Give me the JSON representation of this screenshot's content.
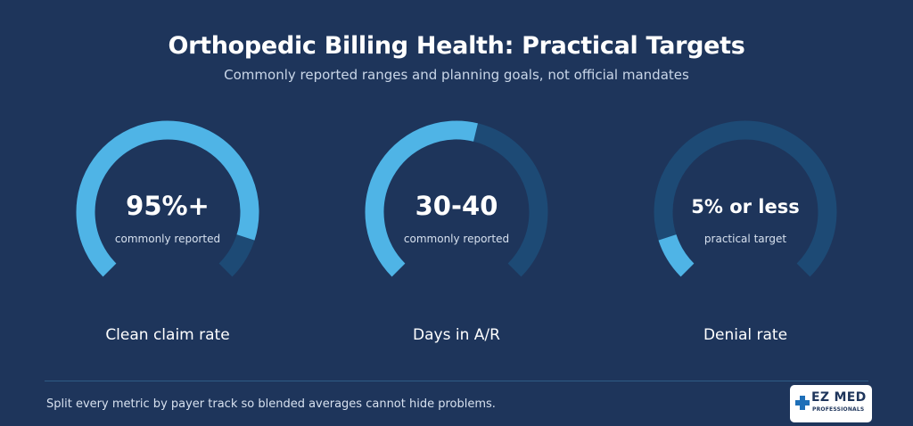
{
  "header": {
    "title": "Orthopedic Billing Health: Practical Targets",
    "subtitle": "Commonly reported ranges and planning goals, not official mandates"
  },
  "colors": {
    "background": "#1e355b",
    "arc_fill": "#4fb4e6",
    "arc_track": "#1d4a75"
  },
  "metrics": [
    {
      "value": "95%+",
      "caption": "commonly reported",
      "label": "Clean claim rate",
      "fill_fraction": 0.9
    },
    {
      "value": "30-40",
      "caption": "commonly reported",
      "label": "Days in A/R",
      "fill_fraction": 0.55
    },
    {
      "value": "5% or less",
      "caption": "practical target",
      "label": "Denial rate",
      "fill_fraction": 0.1
    }
  ],
  "footer": {
    "note": "Split every metric by payer track so blended averages cannot hide problems."
  },
  "logo": {
    "name": "EZ MED",
    "sub": "PROFESSIONALS"
  }
}
